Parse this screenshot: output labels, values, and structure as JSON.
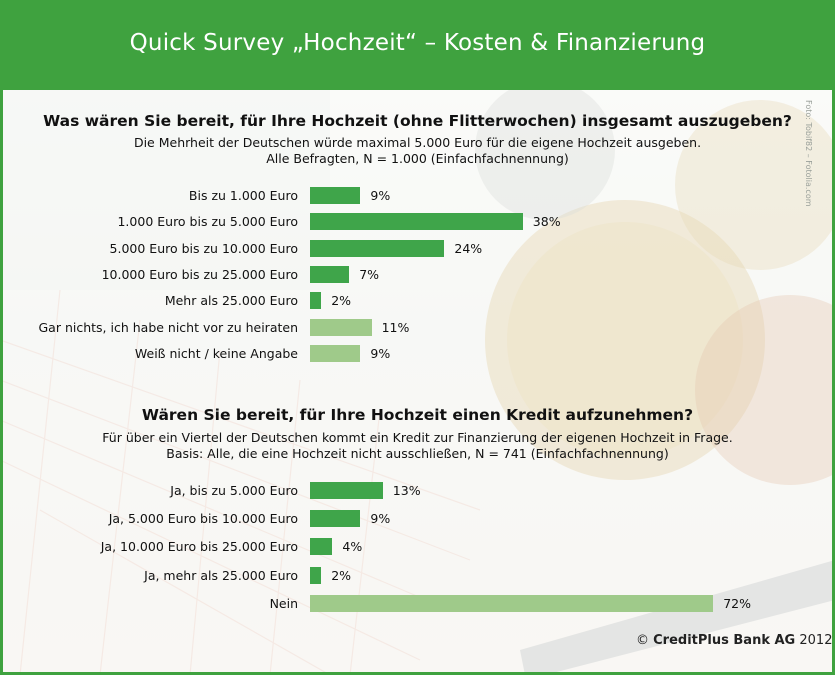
{
  "header": {
    "title": "Quick Survey „Hochzeit“ – Kosten & Finanzierung"
  },
  "colors": {
    "header_green": "#3fa23f",
    "bar_green": "#3fa54a",
    "bar_light_green": "#9fca8a"
  },
  "photo_credit": "Foto: Tobif82 – Fotolia.com",
  "footer": {
    "copyright": "©",
    "company": "CreditPlus Bank AG",
    "year": "2012"
  },
  "chart_data": [
    {
      "type": "bar",
      "orientation": "horizontal",
      "title": "Was wären Sie bereit, für Ihre Hochzeit (ohne Flitterwochen) insgesamt auszugeben?",
      "subtitle_line1": "Die Mehrheit der Deutschen würde maximal 5.000 Euro für die eigene Hochzeit ausgeben.",
      "subtitle_line2": "Alle Befragten, N = 1.000 (Einfachfachnennung)",
      "categories": [
        "Bis zu 1.000 Euro",
        "1.000 Euro bis zu 5.000 Euro",
        "5.000 Euro bis zu 10.000 Euro",
        "10.000 Euro bis zu 25.000 Euro",
        "Mehr als 25.000 Euro",
        "Gar nichts, ich habe nicht vor zu heiraten",
        "Weiß nicht / keine Angabe"
      ],
      "values": [
        9,
        38,
        24,
        7,
        2,
        11,
        9
      ],
      "value_labels": [
        "9%",
        "38%",
        "24%",
        "7%",
        "2%",
        "11%",
        "9%"
      ],
      "bar_colors": [
        "#3fa54a",
        "#3fa54a",
        "#3fa54a",
        "#3fa54a",
        "#3fa54a",
        "#9fca8a",
        "#9fca8a"
      ],
      "unit": "%"
    },
    {
      "type": "bar",
      "orientation": "horizontal",
      "title": "Wären Sie bereit, für Ihre Hochzeit einen Kredit aufzunehmen?",
      "subtitle_line1": "Für über ein Viertel der Deutschen kommt ein Kredit zur Finanzierung der eigenen Hochzeit in Frage.",
      "subtitle_line2": "Basis: Alle, die eine Hochzeit nicht ausschließen, N = 741 (Einfachfachnennung)",
      "categories": [
        "Ja, bis zu 5.000 Euro",
        "Ja, 5.000 Euro bis 10.000 Euro",
        "Ja, 10.000 Euro bis 25.000 Euro",
        "Ja, mehr als 25.000 Euro",
        "Nein"
      ],
      "values": [
        13,
        9,
        4,
        2,
        72
      ],
      "value_labels": [
        "13%",
        "9%",
        "4%",
        "2%",
        "72%"
      ],
      "bar_colors": [
        "#3fa54a",
        "#3fa54a",
        "#3fa54a",
        "#3fa54a",
        "#9fca8a"
      ],
      "unit": "%"
    }
  ]
}
